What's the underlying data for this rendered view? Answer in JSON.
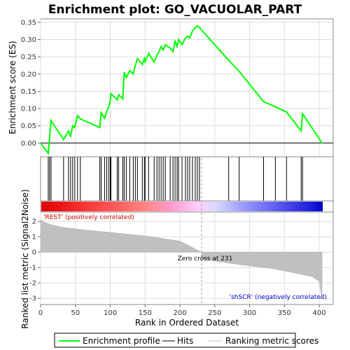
{
  "chart_data": {
    "type": "line",
    "title": "Enrichment plot: GO_VACUOLAR_PART",
    "xlabel": "Rank in Ordered Dataset",
    "ylabel_top": "Enrichment score (ES)",
    "ylabel_bottom": "Ranked list metric (Signal2Noise)",
    "xlim": [
      0,
      420
    ],
    "ylim_top": [
      -0.04,
      0.36
    ],
    "ylim_bottom": [
      -3.4,
      2.6
    ],
    "xticks": [
      "0",
      "50",
      "100",
      "150",
      "200",
      "250",
      "300",
      "350",
      "400"
    ],
    "xtick_values": [
      0,
      50,
      100,
      150,
      200,
      250,
      300,
      350,
      400
    ],
    "yticks_top": [
      "0.00",
      "0.05",
      "0.10",
      "0.15",
      "0.20",
      "0.25",
      "0.30",
      "0.35"
    ],
    "ytick_values_top": [
      0,
      0.05,
      0.1,
      0.15,
      0.2,
      0.25,
      0.3,
      0.35
    ],
    "yticks_bottom": [
      "-3",
      "-2",
      "-1",
      "0",
      "1",
      "2"
    ],
    "ytick_values_bottom": [
      -3,
      -2,
      -1,
      0,
      1,
      2
    ],
    "grid": true,
    "zero_cross_rank": 231,
    "series": [
      {
        "name": "Enrichment profile",
        "color": "#00ff00",
        "x": [
          0,
          11,
          15,
          33,
          40,
          43,
          46,
          49,
          53,
          57,
          85,
          87,
          92,
          95,
          98,
          100,
          101,
          110,
          112,
          118,
          120,
          123,
          128,
          133,
          136,
          139,
          146,
          149,
          150,
          155,
          163,
          167,
          170,
          173,
          176,
          179,
          186,
          190,
          193,
          196,
          198,
          203,
          208,
          211,
          214,
          218,
          222,
          225,
          228,
          270,
          285,
          320,
          337,
          353,
          374,
          376,
          404
        ],
        "y": [
          0.0,
          -0.03,
          0.065,
          0.01,
          0.035,
          0.02,
          0.05,
          0.045,
          0.08,
          0.07,
          0.045,
          0.088,
          0.072,
          0.092,
          0.105,
          0.122,
          0.143,
          0.125,
          0.14,
          0.128,
          0.205,
          0.19,
          0.21,
          0.2,
          0.225,
          0.245,
          0.228,
          0.245,
          0.235,
          0.26,
          0.235,
          0.255,
          0.265,
          0.28,
          0.27,
          0.285,
          0.275,
          0.265,
          0.295,
          0.28,
          0.3,
          0.285,
          0.305,
          0.31,
          0.305,
          0.325,
          0.335,
          0.34,
          0.335,
          0.24,
          0.208,
          0.12,
          0.105,
          0.09,
          0.035,
          0.085,
          0.0
        ]
      }
    ],
    "hits": [
      11,
      13,
      15,
      33,
      40,
      43,
      46,
      49,
      53,
      57,
      85,
      87,
      92,
      95,
      98,
      100,
      101,
      110,
      112,
      118,
      120,
      123,
      128,
      133,
      136,
      139,
      146,
      149,
      150,
      155,
      163,
      167,
      170,
      173,
      176,
      179,
      186,
      190,
      193,
      196,
      198,
      203,
      208,
      211,
      214,
      218,
      222,
      225,
      228,
      270,
      285,
      320,
      337,
      353,
      374,
      376
    ],
    "metric_profile": [
      [
        0,
        2.1
      ],
      [
        5,
        1.95
      ],
      [
        15,
        1.78
      ],
      [
        30,
        1.62
      ],
      [
        60,
        1.46
      ],
      [
        100,
        1.28
      ],
      [
        150,
        1.05
      ],
      [
        200,
        0.72
      ],
      [
        231,
        0.0
      ],
      [
        232,
        -0.45
      ],
      [
        280,
        -0.78
      ],
      [
        330,
        -1.05
      ],
      [
        360,
        -1.3
      ],
      [
        390,
        -1.6
      ],
      [
        400,
        -1.9
      ],
      [
        403,
        -2.8
      ],
      [
        404,
        -3.0
      ]
    ],
    "annotations": {
      "positive": "'REST' (positively correlated)",
      "negative": "'shSCR' (negatively correlated)",
      "zero_cross": "Zero cross at 231"
    },
    "legend": [
      "Enrichment profile",
      "Hits",
      "Ranking metric scores"
    ],
    "legend_placement": "bottom"
  },
  "colors": {
    "es_line": "#00ff00",
    "hit": "#000000",
    "metric_fill": "#c0c0c0",
    "positive_label": "#cc0000",
    "negative_label": "#0000cc"
  }
}
